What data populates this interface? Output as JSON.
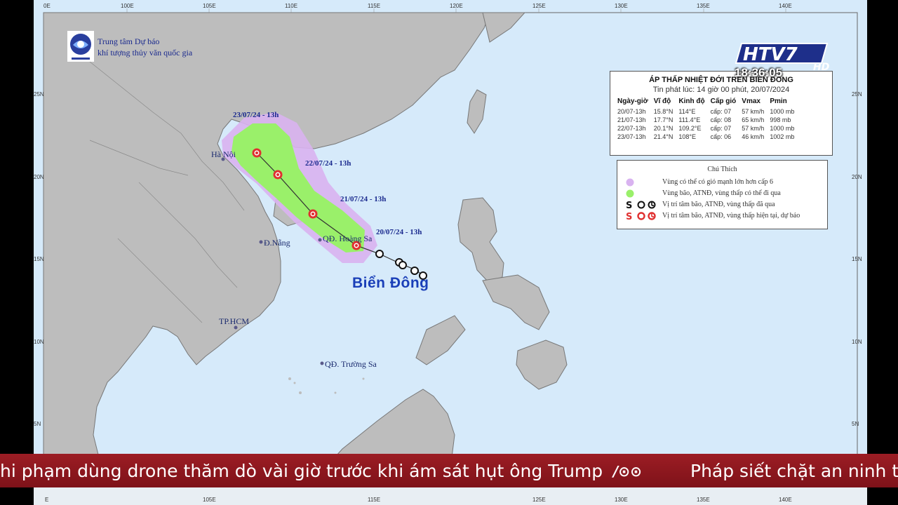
{
  "agency": {
    "line1": "Trung tâm Dự báo",
    "line2": "khí tượng thủy văn quốc gia"
  },
  "axes": {
    "top": [
      "0E",
      "100E",
      "105E",
      "110E",
      "115E",
      "120E",
      "125E",
      "130E",
      "135E",
      "140E"
    ],
    "bottom": [
      "E",
      "105E",
      "115E",
      "125E",
      "130E",
      "135E",
      "140E"
    ],
    "left": [
      "25N",
      "20N",
      "15N",
      "10N",
      "5N"
    ],
    "right": [
      "25N",
      "20N",
      "15N",
      "10N",
      "5N"
    ]
  },
  "places": {
    "hanoi": "Hà Nội",
    "danang": "Đ.Nẵng",
    "hoangsa": "QĐ. Hoàng Sa",
    "hcm": "TP.HCM",
    "truongsa": "QĐ. Trường Sa",
    "sea": "Biển Đông"
  },
  "track_labels": [
    "23/07/24 - 13h",
    "22/07/24 - 13h",
    "21/07/24 - 13h",
    "20/07/24 - 13h"
  ],
  "info_table": {
    "title": "ÁP THẤP NHIỆT ĐỚI TRÊN BIỂN ĐÔNG",
    "subtitle": "Tin phát lúc: 14 giờ 00 phút, 20/07/2024",
    "headers": [
      "Ngày-giờ",
      "Vĩ độ",
      "Kinh độ",
      "Cấp gió",
      "Vmax",
      "Pmin"
    ],
    "rows": [
      [
        "20/07-13h",
        "15.8°N",
        "114°E",
        "cấp: 07",
        "57 km/h",
        "1000 mb"
      ],
      [
        "21/07-13h",
        "17.7°N",
        "111.4°E",
        "cấp: 08",
        "65 km/h",
        "998 mb"
      ],
      [
        "22/07-13h",
        "20.1°N",
        "109.2°E",
        "cấp: 07",
        "57 km/h",
        "1000 mb"
      ],
      [
        "23/07-13h",
        "21.4°N",
        "108°E",
        "cấp: 06",
        "46 km/h",
        "1002 mb"
      ]
    ]
  },
  "legend": {
    "title": "Chú Thích",
    "items": [
      "Vùng có thể có gió mạnh lớn hơn cấp 6",
      "Vùng bão, ATNĐ, vùng thấp có thể đi qua",
      "Vị trí tâm bão, ATNĐ, vùng thấp đã qua",
      "Vị trí tâm bão, ATNĐ, vùng thấp hiện tại, dự báo"
    ],
    "colors": {
      "wind_zone": "#cc99ee",
      "storm_zone": "#99ee66",
      "track_red": "#e03030"
    }
  },
  "channel": {
    "logo_text": "HTV7",
    "hd": "HD",
    "time": "18:36:05"
  },
  "ticker": {
    "text_left": "hi phạm dùng drone thăm dò vài giờ trước khi ám sát hụt ông Trump",
    "text_right": "Pháp siết chặt an ninh tru"
  }
}
